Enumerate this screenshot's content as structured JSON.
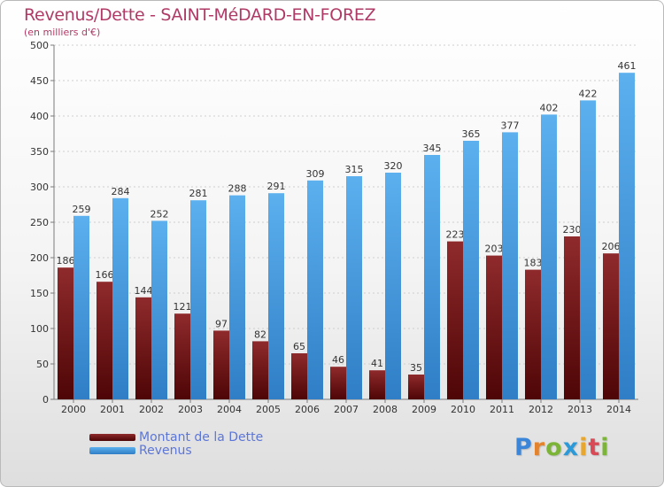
{
  "chart_data": {
    "type": "bar",
    "title": "Revenus/Dette - SAINT-MéDARD-EN-FOREZ",
    "subtitle": "(en milliers d'€)",
    "categories": [
      "2000",
      "2001",
      "2002",
      "2003",
      "2004",
      "2005",
      "2006",
      "2007",
      "2008",
      "2009",
      "2010",
      "2011",
      "2012",
      "2013",
      "2014"
    ],
    "series": [
      {
        "name": "Montant de la Dette",
        "color": "#7b1416",
        "values": [
          186,
          166,
          144,
          121,
          97,
          82,
          65,
          46,
          41,
          35,
          223,
          203,
          183,
          230,
          206
        ]
      },
      {
        "name": "Revenus",
        "color": "#4b9fe2",
        "values": [
          259,
          284,
          252,
          281,
          288,
          291,
          309,
          315,
          320,
          345,
          365,
          377,
          402,
          422,
          461
        ]
      }
    ],
    "ylim": [
      0,
      500
    ],
    "yticks": [
      "0",
      "50",
      "100",
      "150",
      "200",
      "250",
      "300",
      "350",
      "400",
      "450",
      "500"
    ],
    "grid": true,
    "legend": "bottom-left"
  },
  "logo_text": [
    "P",
    "r",
    "o",
    "x",
    "i",
    "t",
    "i"
  ],
  "colors": {
    "title": "#b03a66",
    "legend_text": "#5c76d8",
    "axis": "#7a7a7a",
    "grid": "#cfcfcf"
  }
}
